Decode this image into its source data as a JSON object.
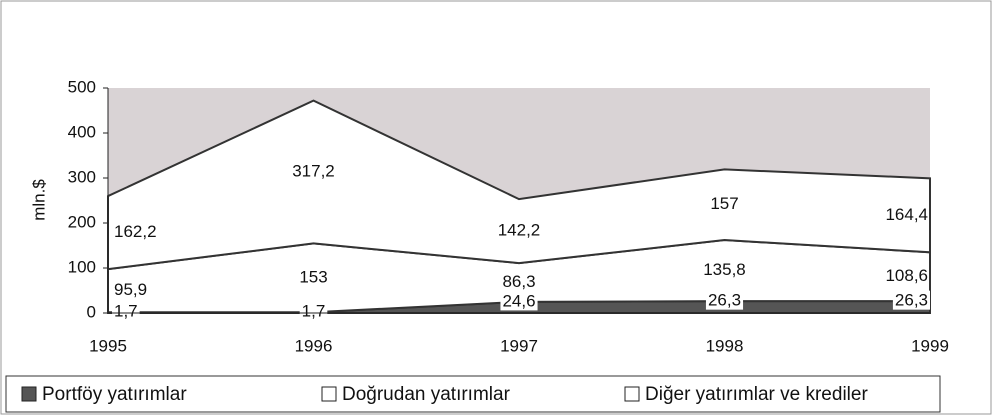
{
  "chart_data": {
    "type": "area",
    "stacked": true,
    "categories": [
      "1995",
      "1996",
      "1997",
      "1998",
      "1999"
    ],
    "y_label": "mln.$",
    "ylim": [
      0,
      500
    ],
    "yticks": [
      0,
      100,
      200,
      300,
      400,
      500
    ],
    "background": "#d9d3d5",
    "series": [
      {
        "name": "Portföy yatırımlar",
        "color": "#555555",
        "values": [
          1.7,
          1.7,
          24.6,
          26.3,
          26.3
        ],
        "value_labels": [
          "1,7",
          "1,7",
          "24,6",
          "26,3",
          "26,3"
        ]
      },
      {
        "name": "Doğrudan yatırımlar",
        "color": "#ffffff",
        "values": [
          95.9,
          153,
          86.3,
          135.8,
          108.6
        ],
        "value_labels": [
          "95,9",
          "153",
          "86,3",
          "135,8",
          "108,6"
        ]
      },
      {
        "name": "Diğer yatırımlar ve krediler",
        "color": "#ffffff",
        "values": [
          162.2,
          317.2,
          142.2,
          157,
          164.4
        ],
        "value_labels": [
          "162,2",
          "317,2",
          "142,2",
          "157",
          "164,4"
        ]
      }
    ],
    "legend": "bottom"
  }
}
